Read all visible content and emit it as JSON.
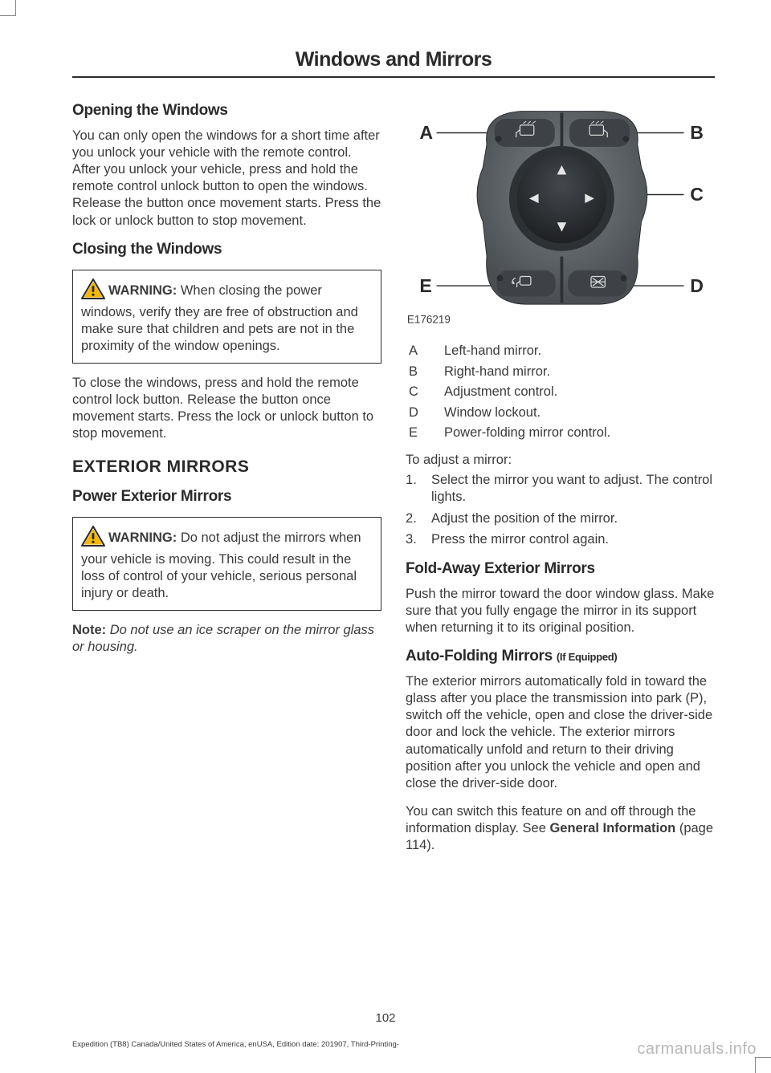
{
  "header": {
    "title": "Windows and Mirrors"
  },
  "left": {
    "opening": {
      "heading": "Opening the Windows",
      "body": "You can only open the windows for a short time after you unlock your vehicle with the remote control. After you unlock your vehicle, press and hold the remote control unlock button to open the windows. Release the button once movement starts. Press the lock or unlock button to stop movement."
    },
    "closing": {
      "heading": "Closing the Windows",
      "warn_label": "WARNING:",
      "warn_body": " When closing the power windows, verify they are free of obstruction and make sure that children and pets are not in the proximity of the window openings.",
      "body": "To close the windows, press and hold the remote control lock button. Release the button once movement starts. Press the lock or unlock button to stop movement."
    },
    "exterior": {
      "heading": "EXTERIOR MIRRORS",
      "sub": "Power Exterior Mirrors",
      "warn_label": "WARNING:",
      "warn_body": " Do not adjust the mirrors when your vehicle is moving. This could result in the loss of control of your vehicle, serious personal injury or death.",
      "note_label": "Note:",
      "note_body": " Do not use an ice scraper on the mirror glass or housing."
    }
  },
  "right": {
    "diagram": {
      "ref": "E176219",
      "labels": {
        "A": "A",
        "B": "B",
        "C": "C",
        "D": "D",
        "E": "E"
      },
      "colors": {
        "body": "#5f6468",
        "body_dark": "#4a4e52",
        "pad": "#2c2f32",
        "highlight": "#8a8f93",
        "line": "#2a2a2a"
      }
    },
    "legend": [
      {
        "k": "A",
        "v": "Left-hand mirror."
      },
      {
        "k": "B",
        "v": "Right-hand mirror."
      },
      {
        "k": "C",
        "v": "Adjustment control."
      },
      {
        "k": "D",
        "v": "Window lockout."
      },
      {
        "k": "E",
        "v": "Power-folding mirror control."
      }
    ],
    "adjust_intro": "To adjust a mirror:",
    "steps": [
      "Select the mirror you want to adjust. The control lights.",
      "Adjust the position of the mirror.",
      "Press the mirror control again."
    ],
    "foldaway": {
      "heading": "Fold-Away Exterior Mirrors",
      "body": "Push the mirror toward the door window glass.  Make sure that you fully engage the mirror in its support when returning it to its original position."
    },
    "autofold": {
      "heading": "Auto-Folding Mirrors ",
      "equipped": "(If Equipped)",
      "body1": "The exterior mirrors automatically fold in toward the glass after you place the transmission into park (P), switch off the vehicle, open and close the driver-side door and lock the vehicle. The exterior mirrors automatically unfold and return to their driving position after you unlock the vehicle and open and close the driver-side door.",
      "body2_a": "You can switch this feature on and off through the information display.  See ",
      "body2_link": "General Information",
      "body2_b": " (page 114)."
    }
  },
  "page_number": "102",
  "footer": "Expedition (TB8) Canada/United States of America, enUSA, Edition date: 201907, Third-Printing-",
  "watermark": "carmanuals.info"
}
